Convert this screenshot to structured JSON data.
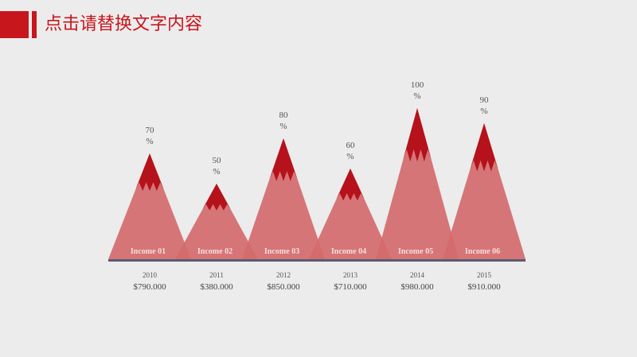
{
  "header": {
    "title": "点击请替换文字内容"
  },
  "colors": {
    "accent": "#c8161d",
    "mountain_body": "#d46a6c",
    "mountain_peak": "#b5121b",
    "baseline": "#5b5b73"
  },
  "chart_data": {
    "type": "bar",
    "categories": [
      "Income 01",
      "Income 02",
      "Income 03",
      "Income 04",
      "Income 05",
      "Income 06"
    ],
    "values": [
      70,
      50,
      80,
      60,
      100,
      90
    ],
    "value_labels": [
      [
        "70",
        "%"
      ],
      [
        "50",
        "%"
      ],
      [
        "80",
        "%"
      ],
      [
        "60",
        "%"
      ],
      [
        "100",
        "%"
      ],
      [
        "90",
        "%"
      ]
    ],
    "years": [
      "2010",
      "2011",
      "2012",
      "2013",
      "2014",
      "2015"
    ],
    "amounts": [
      "$790.000",
      "$380.000",
      "$850.000",
      "$710.000",
      "$980.000",
      "$910.000"
    ],
    "ylim": [
      0,
      100
    ],
    "title": "",
    "xlabel": "",
    "ylabel": ""
  }
}
